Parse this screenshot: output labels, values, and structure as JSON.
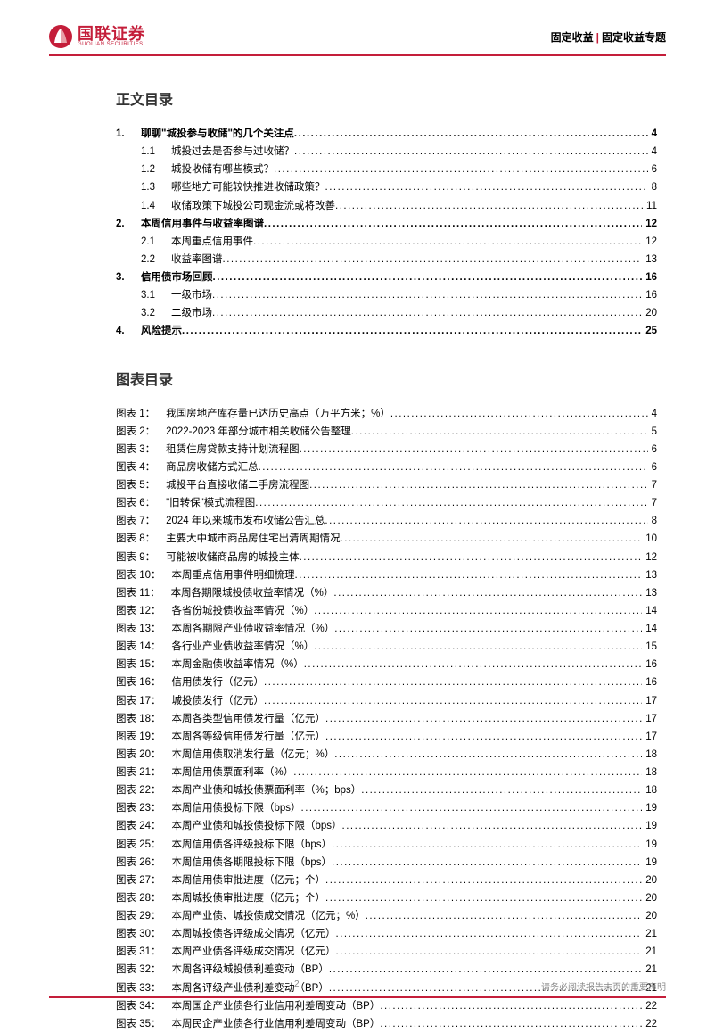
{
  "header": {
    "logo_cn": "国联证券",
    "logo_en": "GUOLIAN SECURITIES",
    "right_left": "固定收益",
    "right_right": "固定收益专题"
  },
  "toc_title": "正文目录",
  "toc": [
    {
      "level": 1,
      "num": "1.",
      "text": "聊聊\"城投参与收储\"的几个关注点",
      "page": "4"
    },
    {
      "level": 2,
      "num": "1.1",
      "text": "城投过去是否参与过收储？",
      "page": "4"
    },
    {
      "level": 2,
      "num": "1.2",
      "text": "城投收储有哪些模式？",
      "page": "6"
    },
    {
      "level": 2,
      "num": "1.3",
      "text": "哪些地方可能较快推进收储政策？",
      "page": "8"
    },
    {
      "level": 2,
      "num": "1.4",
      "text": "收储政策下城投公司现金流或将改善",
      "page": "11"
    },
    {
      "level": 1,
      "num": "2.",
      "text": "本周信用事件与收益率图谱",
      "page": "12"
    },
    {
      "level": 2,
      "num": "2.1",
      "text": "本周重点信用事件",
      "page": "12"
    },
    {
      "level": 2,
      "num": "2.2",
      "text": "收益率图谱",
      "page": "13"
    },
    {
      "level": 1,
      "num": "3.",
      "text": "信用债市场回顾",
      "page": "16"
    },
    {
      "level": 2,
      "num": "3.1",
      "text": "一级市场",
      "page": "16"
    },
    {
      "level": 2,
      "num": "3.2",
      "text": "二级市场",
      "page": "20"
    },
    {
      "level": 1,
      "num": "4.",
      "text": "风险提示",
      "page": "25"
    }
  ],
  "fig_title": "图表目录",
  "figures": [
    {
      "label": "图表 1：",
      "text": "我国房地产库存量已达历史高点（万平方米；%）",
      "page": "4"
    },
    {
      "label": "图表 2：",
      "text": "2022-2023 年部分城市相关收储公告整理",
      "page": "5"
    },
    {
      "label": "图表 3：",
      "text": "租赁住房贷款支持计划流程图",
      "page": "6"
    },
    {
      "label": "图表 4：",
      "text": "商品房收储方式汇总",
      "page": "6"
    },
    {
      "label": "图表 5：",
      "text": "城投平台直接收储二手房流程图",
      "page": "7"
    },
    {
      "label": "图表 6：",
      "text": "\"旧转保\"模式流程图",
      "page": "7"
    },
    {
      "label": "图表 7：",
      "text": "2024 年以来城市发布收储公告汇总",
      "page": "8"
    },
    {
      "label": "图表 8：",
      "text": "主要大中城市商品房住宅出清周期情况",
      "page": "10"
    },
    {
      "label": "图表 9：",
      "text": "可能被收储商品房的城投主体",
      "page": "12"
    },
    {
      "label": "图表 10：",
      "text": "本周重点信用事件明细梳理",
      "page": "13"
    },
    {
      "label": "图表 11：",
      "text": "本周各期限城投债收益率情况（%）",
      "page": "13"
    },
    {
      "label": "图表 12：",
      "text": "各省份城投债收益率情况（%）",
      "page": "14"
    },
    {
      "label": "图表 13：",
      "text": "本周各期限产业债收益率情况（%）",
      "page": "14"
    },
    {
      "label": "图表 14：",
      "text": "各行业产业债收益率情况（%）",
      "page": "15"
    },
    {
      "label": "图表 15：",
      "text": "本周金融债收益率情况（%）",
      "page": "16"
    },
    {
      "label": "图表 16：",
      "text": "信用债发行（亿元）",
      "page": "16"
    },
    {
      "label": "图表 17：",
      "text": "城投债发行（亿元）",
      "page": "17"
    },
    {
      "label": "图表 18：",
      "text": "本周各类型信用债发行量（亿元）",
      "page": "17"
    },
    {
      "label": "图表 19：",
      "text": "本周各等级信用债发行量（亿元）",
      "page": "17"
    },
    {
      "label": "图表 20：",
      "text": "本周信用债取消发行量（亿元；%）",
      "page": "18"
    },
    {
      "label": "图表 21：",
      "text": "本周信用债票面利率（%）",
      "page": "18"
    },
    {
      "label": "图表 22：",
      "text": "本周产业债和城投债票面利率（%；bps）",
      "page": "18"
    },
    {
      "label": "图表 23：",
      "text": "本周信用债投标下限（bps）",
      "page": "19"
    },
    {
      "label": "图表 24：",
      "text": "本周产业债和城投债投标下限（bps）",
      "page": "19"
    },
    {
      "label": "图表 25：",
      "text": "本周信用债各评级投标下限（bps）",
      "page": "19"
    },
    {
      "label": "图表 26：",
      "text": "本周信用债各期限投标下限（bps）",
      "page": "19"
    },
    {
      "label": "图表 27：",
      "text": "本周信用债审批进度（亿元；个）",
      "page": "20"
    },
    {
      "label": "图表 28：",
      "text": "本周城投债审批进度（亿元；个）",
      "page": "20"
    },
    {
      "label": "图表 29：",
      "text": "本周产业债、城投债成交情况（亿元；%）",
      "page": "20"
    },
    {
      "label": "图表 30：",
      "text": "本周城投债各评级成交情况（亿元）",
      "page": "21"
    },
    {
      "label": "图表 31：",
      "text": "本周产业债各评级成交情况（亿元）",
      "page": "21"
    },
    {
      "label": "图表 32：",
      "text": "本周各评级城投债利差变动（BP）",
      "page": "21"
    },
    {
      "label": "图表 33：",
      "text": "本周各评级产业债利差变动（BP）",
      "page": "21"
    },
    {
      "label": "图表 34：",
      "text": "本周国企产业债各行业信用利差周变动（BP）",
      "page": "22"
    },
    {
      "label": "图表 35：",
      "text": "本周民企产业债各行业信用利差周变动（BP）",
      "page": "22"
    }
  ],
  "footer": {
    "page": "2",
    "declaration": "请务必阅读报告末页的重要声明"
  },
  "colors": {
    "brand_red": "#c41e3a",
    "text": "#333333",
    "footer_text": "#888888",
    "bg": "#ffffff"
  }
}
